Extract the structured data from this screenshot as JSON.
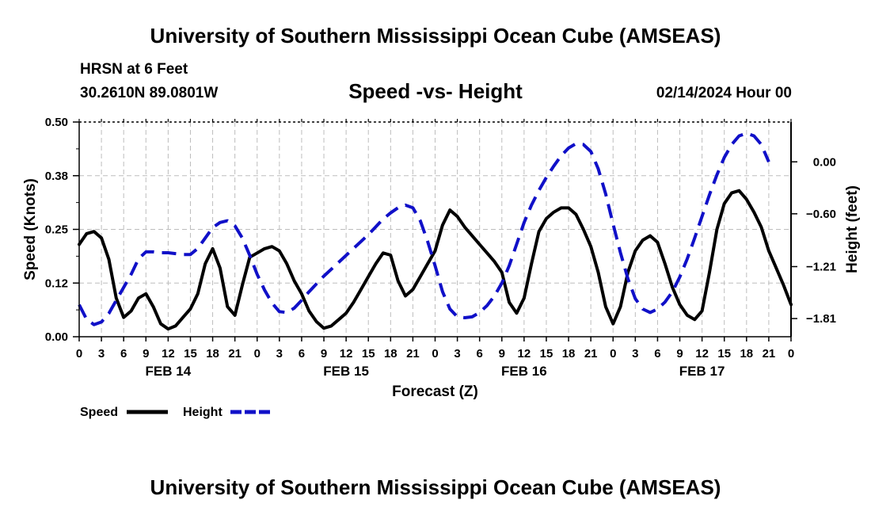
{
  "main_title": "University of Southern Mississippi Ocean Cube (AMSEAS)",
  "station": "HRSN at 6 Feet",
  "coords": "30.2610N  89.0801W",
  "datetime": "02/14/2024 Hour 00",
  "footer_title": "University of Southern Mississippi Ocean Cube (AMSEAS)",
  "colors": {
    "speed": "#000000",
    "height": "#1010c8",
    "grid": "#bdbdbd"
  },
  "chart_data": {
    "type": "line",
    "title": "Speed -vs- Height",
    "xlabel": "Forecast (Z)",
    "ylabel_left": "Speed (Knots)",
    "ylabel_right": "Height (feet)",
    "x_unit": "hours since 02/14/2024 00Z",
    "xlim": [
      0,
      96
    ],
    "ylim_left": [
      0,
      0.5
    ],
    "ylim_right": [
      -2.02,
      0.46
    ],
    "x_tick_labels": [
      "0",
      "3",
      "6",
      "9",
      "12",
      "15",
      "18",
      "21",
      "0",
      "3",
      "6",
      "9",
      "12",
      "15",
      "18",
      "21",
      "0",
      "3",
      "6",
      "9",
      "12",
      "15",
      "18",
      "21",
      "0",
      "3",
      "6",
      "9",
      "12",
      "15",
      "18",
      "21",
      "0"
    ],
    "day_labels": [
      {
        "hour": 12,
        "label": "FEB 14"
      },
      {
        "hour": 36,
        "label": "FEB 15"
      },
      {
        "hour": 60,
        "label": "FEB 16"
      },
      {
        "hour": 84,
        "label": "FEB 17"
      }
    ],
    "left_ticks": [
      {
        "value": 0.0,
        "label": "0.00"
      },
      {
        "value": 0.125,
        "label": "0.12"
      },
      {
        "value": 0.25,
        "label": "0.25"
      },
      {
        "value": 0.375,
        "label": "0.38"
      },
      {
        "value": 0.5,
        "label": "0.50"
      }
    ],
    "right_ticks": [
      {
        "value": 0.0,
        "label": "0.00"
      },
      {
        "value": -0.6,
        "label": "−0.60"
      },
      {
        "value": -1.21,
        "label": "−1.21"
      },
      {
        "value": -1.81,
        "label": "−1.81"
      }
    ],
    "series": [
      {
        "name": "Speed",
        "axis": "left",
        "style": "solid",
        "points": [
          [
            0,
            0.215
          ],
          [
            1,
            0.24
          ],
          [
            2,
            0.245
          ],
          [
            3,
            0.23
          ],
          [
            4,
            0.18
          ],
          [
            5,
            0.09
          ],
          [
            6,
            0.045
          ],
          [
            7,
            0.06
          ],
          [
            8,
            0.09
          ],
          [
            9,
            0.1
          ],
          [
            10,
            0.07
          ],
          [
            11,
            0.03
          ],
          [
            12,
            0.018
          ],
          [
            13,
            0.025
          ],
          [
            14,
            0.045
          ],
          [
            15,
            0.065
          ],
          [
            16,
            0.1
          ],
          [
            17,
            0.17
          ],
          [
            18,
            0.205
          ],
          [
            19,
            0.16
          ],
          [
            20,
            0.07
          ],
          [
            21,
            0.05
          ],
          [
            22,
            0.12
          ],
          [
            23,
            0.185
          ],
          [
            24,
            0.195
          ],
          [
            25,
            0.205
          ],
          [
            26,
            0.21
          ],
          [
            27,
            0.2
          ],
          [
            28,
            0.17
          ],
          [
            29,
            0.13
          ],
          [
            30,
            0.1
          ],
          [
            31,
            0.06
          ],
          [
            32,
            0.035
          ],
          [
            33,
            0.02
          ],
          [
            34,
            0.025
          ],
          [
            35,
            0.04
          ],
          [
            36,
            0.055
          ],
          [
            37,
            0.08
          ],
          [
            38,
            0.11
          ],
          [
            39,
            0.14
          ],
          [
            40,
            0.17
          ],
          [
            41,
            0.195
          ],
          [
            42,
            0.19
          ],
          [
            43,
            0.13
          ],
          [
            44,
            0.095
          ],
          [
            45,
            0.11
          ],
          [
            46,
            0.14
          ],
          [
            47,
            0.17
          ],
          [
            48,
            0.2
          ],
          [
            49,
            0.26
          ],
          [
            50,
            0.295
          ],
          [
            51,
            0.28
          ],
          [
            52,
            0.255
          ],
          [
            53,
            0.235
          ],
          [
            54,
            0.215
          ],
          [
            55,
            0.195
          ],
          [
            56,
            0.175
          ],
          [
            57,
            0.15
          ],
          [
            58,
            0.08
          ],
          [
            59,
            0.055
          ],
          [
            60,
            0.09
          ],
          [
            61,
            0.17
          ],
          [
            62,
            0.245
          ],
          [
            63,
            0.275
          ],
          [
            64,
            0.29
          ],
          [
            65,
            0.3
          ],
          [
            66,
            0.3
          ],
          [
            67,
            0.285
          ],
          [
            68,
            0.25
          ],
          [
            69,
            0.21
          ],
          [
            70,
            0.15
          ],
          [
            71,
            0.07
          ],
          [
            72,
            0.03
          ],
          [
            73,
            0.07
          ],
          [
            74,
            0.15
          ],
          [
            75,
            0.2
          ],
          [
            76,
            0.225
          ],
          [
            77,
            0.235
          ],
          [
            78,
            0.22
          ],
          [
            79,
            0.17
          ],
          [
            80,
            0.115
          ],
          [
            81,
            0.075
          ],
          [
            82,
            0.05
          ],
          [
            83,
            0.04
          ],
          [
            84,
            0.06
          ],
          [
            85,
            0.15
          ],
          [
            86,
            0.25
          ],
          [
            87,
            0.31
          ],
          [
            88,
            0.335
          ],
          [
            89,
            0.34
          ],
          [
            90,
            0.32
          ],
          [
            91,
            0.29
          ],
          [
            92,
            0.255
          ],
          [
            93,
            0.2
          ],
          [
            94,
            0.16
          ],
          [
            95,
            0.12
          ],
          [
            96,
            0.075
          ]
        ]
      },
      {
        "name": "Height",
        "axis": "right",
        "style": "dashed",
        "points": [
          [
            0,
            -1.65
          ],
          [
            1,
            -1.82
          ],
          [
            2,
            -1.88
          ],
          [
            3,
            -1.85
          ],
          [
            4,
            -1.75
          ],
          [
            5,
            -1.6
          ],
          [
            6,
            -1.45
          ],
          [
            7,
            -1.3
          ],
          [
            8,
            -1.12
          ],
          [
            9,
            -1.04
          ],
          [
            10,
            -1.04
          ],
          [
            11,
            -1.05
          ],
          [
            12,
            -1.05
          ],
          [
            13,
            -1.06
          ],
          [
            14,
            -1.07
          ],
          [
            15,
            -1.07
          ],
          [
            16,
            -1.0
          ],
          [
            17,
            -0.88
          ],
          [
            18,
            -0.76
          ],
          [
            19,
            -0.7
          ],
          [
            20,
            -0.68
          ],
          [
            21,
            -0.74
          ],
          [
            22,
            -0.88
          ],
          [
            23,
            -1.08
          ],
          [
            24,
            -1.3
          ],
          [
            25,
            -1.48
          ],
          [
            26,
            -1.63
          ],
          [
            27,
            -1.73
          ],
          [
            28,
            -1.74
          ],
          [
            29,
            -1.69
          ],
          [
            30,
            -1.6
          ],
          [
            31,
            -1.5
          ],
          [
            32,
            -1.41
          ],
          [
            33,
            -1.32
          ],
          [
            34,
            -1.24
          ],
          [
            35,
            -1.16
          ],
          [
            36,
            -1.08
          ],
          [
            37,
            -1.0
          ],
          [
            38,
            -0.92
          ],
          [
            39,
            -0.84
          ],
          [
            40,
            -0.75
          ],
          [
            41,
            -0.66
          ],
          [
            42,
            -0.59
          ],
          [
            43,
            -0.53
          ],
          [
            44,
            -0.5
          ],
          [
            45,
            -0.53
          ],
          [
            46,
            -0.68
          ],
          [
            47,
            -0.92
          ],
          [
            48,
            -1.2
          ],
          [
            49,
            -1.5
          ],
          [
            50,
            -1.7
          ],
          [
            51,
            -1.79
          ],
          [
            52,
            -1.8
          ],
          [
            53,
            -1.79
          ],
          [
            54,
            -1.74
          ],
          [
            55,
            -1.66
          ],
          [
            56,
            -1.55
          ],
          [
            57,
            -1.4
          ],
          [
            58,
            -1.2
          ],
          [
            59,
            -0.95
          ],
          [
            60,
            -0.7
          ],
          [
            61,
            -0.5
          ],
          [
            62,
            -0.33
          ],
          [
            63,
            -0.18
          ],
          [
            64,
            -0.05
          ],
          [
            65,
            0.07
          ],
          [
            66,
            0.16
          ],
          [
            67,
            0.21
          ],
          [
            68,
            0.2
          ],
          [
            69,
            0.12
          ],
          [
            70,
            -0.08
          ],
          [
            71,
            -0.37
          ],
          [
            72,
            -0.72
          ],
          [
            73,
            -1.05
          ],
          [
            74,
            -1.35
          ],
          [
            75,
            -1.58
          ],
          [
            76,
            -1.7
          ],
          [
            77,
            -1.74
          ],
          [
            78,
            -1.7
          ],
          [
            79,
            -1.62
          ],
          [
            80,
            -1.5
          ],
          [
            81,
            -1.33
          ],
          [
            82,
            -1.12
          ],
          [
            83,
            -0.88
          ],
          [
            84,
            -0.63
          ],
          [
            85,
            -0.38
          ],
          [
            86,
            -0.15
          ],
          [
            87,
            0.05
          ],
          [
            88,
            0.2
          ],
          [
            89,
            0.3
          ],
          [
            90,
            0.33
          ],
          [
            91,
            0.3
          ],
          [
            92,
            0.2
          ],
          [
            93,
            0.0
          ]
        ]
      }
    ],
    "legend": [
      {
        "label": "Speed",
        "style": "solid"
      },
      {
        "label": "Height",
        "style": "dashed"
      }
    ]
  }
}
